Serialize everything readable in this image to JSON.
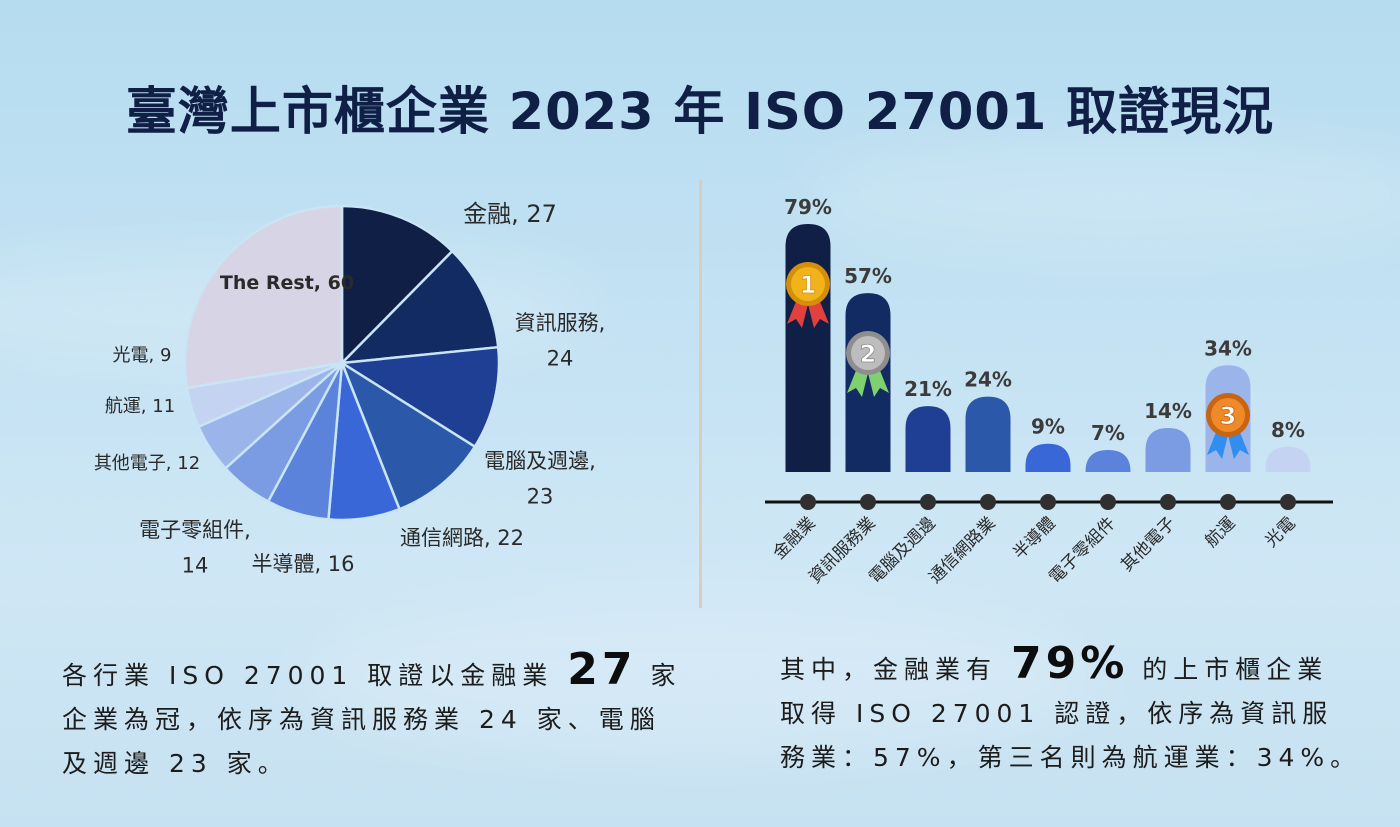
{
  "title": "臺灣上市櫃企業 2023 年 ISO 27001 取證現況",
  "chart_data": [
    {
      "type": "pie",
      "slices": [
        {
          "label": "金融",
          "value": 27,
          "color": "#0f1f45"
        },
        {
          "label": "資訊服務",
          "value": 24,
          "color": "#132b63"
        },
        {
          "label": "電腦及週邊",
          "value": 23,
          "color": "#1f3f95"
        },
        {
          "label": "通信網路",
          "value": 22,
          "color": "#2b58a8"
        },
        {
          "label": "半導體",
          "value": 16,
          "color": "#3a67d8"
        },
        {
          "label": "電子零組件",
          "value": 14,
          "color": "#5b83dc"
        },
        {
          "label": "其他電子",
          "value": 12,
          "color": "#7b9be2"
        },
        {
          "label": "航運",
          "value": 11,
          "color": "#9bb4ea"
        },
        {
          "label": "光電",
          "value": 9,
          "color": "#c5d3f2"
        },
        {
          "label": "The Rest",
          "value": 60,
          "color": "#d7d5e5"
        }
      ],
      "labels": [
        {
          "lines": [
            "金融, 27"
          ]
        },
        {
          "lines": [
            "資訊服務,",
            "24"
          ]
        },
        {
          "lines": [
            "電腦及週邊,",
            "23"
          ]
        },
        {
          "lines": [
            "通信網路, 22"
          ]
        },
        {
          "lines": [
            "半導體, 16"
          ]
        },
        {
          "lines": [
            "電子零組件,",
            "14"
          ]
        },
        {
          "lines": [
            "其他電子, 12"
          ]
        },
        {
          "lines": [
            "航運, 11"
          ]
        },
        {
          "lines": [
            "光電, 9"
          ]
        },
        {
          "lines": [
            "The Rest, 60"
          ]
        }
      ]
    },
    {
      "type": "bar",
      "categories": [
        "金融業",
        "資訊服務業",
        "電腦及週邊",
        "通信網路業",
        "半導體",
        "電子零組件",
        "其他電子",
        "航運",
        "光電"
      ],
      "values": [
        79,
        57,
        21,
        24,
        9,
        7,
        14,
        34,
        8
      ],
      "value_labels": [
        "79%",
        "57%",
        "21%",
        "24%",
        "9%",
        "7%",
        "14%",
        "34%",
        "8%"
      ],
      "colors": [
        "#0f1f45",
        "#132b63",
        "#1f3f95",
        "#2b58a8",
        "#3a67d8",
        "#5b83dc",
        "#7b9be2",
        "#9bb4ea",
        "#c5d3f2"
      ],
      "ylim": [
        0,
        79
      ],
      "medals": [
        {
          "category": "金融業",
          "rank": "1",
          "icon": "gold-medal-icon"
        },
        {
          "category": "資訊服務業",
          "rank": "2",
          "icon": "silver-medal-icon"
        },
        {
          "category": "航運",
          "rank": "3",
          "icon": "bronze-medal-icon"
        }
      ]
    }
  ],
  "caption_left": {
    "line1_pre": "各行業 ISO 27001 取證以金融業",
    "line1_big": "27",
    "line1_post": "家",
    "line2": "企業為冠，依序為資訊服務業 24 家、電腦",
    "line3": "及週邊 23 家。"
  },
  "caption_right": {
    "line1_pre": "其中，金融業有",
    "line1_big": "79%",
    "line1_post": "的上市櫃企業",
    "line2": "取得 ISO 27001 認證，依序為資訊服",
    "line3": "務業：57%，第三名則為航運業：34%。"
  }
}
